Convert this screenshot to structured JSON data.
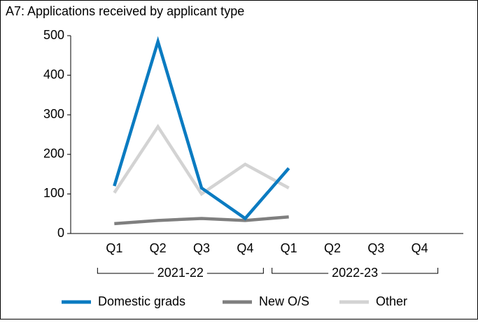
{
  "chart_data": {
    "type": "line",
    "title": "A7: Applications received by applicant type",
    "category_groups": [
      {
        "label": "2021-22",
        "categories": [
          "Q1",
          "Q2",
          "Q3",
          "Q4"
        ]
      },
      {
        "label": "2022-23",
        "categories": [
          "Q1",
          "Q2",
          "Q3",
          "Q4"
        ]
      }
    ],
    "series": [
      {
        "name": "Domestic grads",
        "color": "#0a7bc1",
        "values": [
          120,
          485,
          115,
          38,
          165,
          null,
          null,
          null
        ]
      },
      {
        "name": "New O/S",
        "color": "#7f7f7f",
        "values": [
          25,
          33,
          38,
          33,
          42,
          null,
          null,
          null
        ]
      },
      {
        "name": "Other",
        "color": "#d3d3d3",
        "values": [
          103,
          270,
          100,
          175,
          115,
          null,
          null,
          null
        ]
      }
    ],
    "ylim": [
      0,
      500
    ],
    "yticks": [
      0,
      100,
      200,
      300,
      400,
      500
    ],
    "legend": "bottom"
  }
}
